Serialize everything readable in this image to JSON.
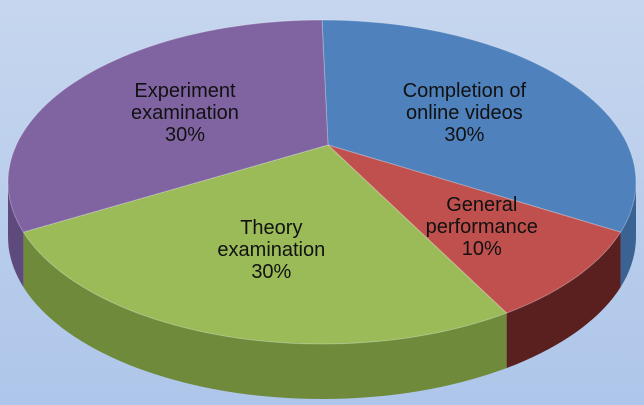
{
  "chart_data": {
    "type": "pie",
    "categories": [
      "Completion of online videos",
      "General performance",
      "Theory examination",
      "Experiment examination"
    ],
    "values": [
      30,
      10,
      30,
      30
    ],
    "value_labels": [
      "30%",
      "10%",
      "30%",
      "30%"
    ],
    "colors": [
      "#4f81bd",
      "#c0504d",
      "#9bbb59",
      "#8064a2"
    ],
    "side_colors": [
      "#3a6394",
      "#5a1f1f",
      "#6f8a3a",
      "#5f4a7e"
    ]
  }
}
